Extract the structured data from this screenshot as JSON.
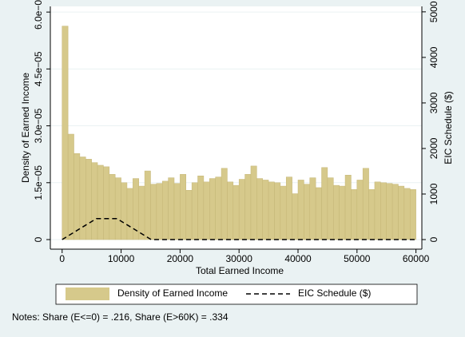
{
  "chart_data": {
    "type": "histogram",
    "x_label": "Total Earned Income",
    "y_label": "Density of Earned Income",
    "y2_label": "EIC Schedule ($)",
    "note": "Notes: Share (E<=0) = .216, Share (E>60K) = .334",
    "legend": "bottom",
    "grid": true,
    "xlim": [
      -2000,
      61000
    ],
    "xticks": [
      0,
      10000,
      20000,
      30000,
      40000,
      50000,
      60000
    ],
    "ylim": [
      0,
      6.15e-05
    ],
    "yticks": [
      0,
      {
        "value": 1.5e-05,
        "label": "1.5e−05"
      },
      {
        "value": 3e-05,
        "label": "3.0e−05"
      },
      {
        "value": 4.5e-05,
        "label": "4.5e−05"
      },
      {
        "value": 6e-05,
        "label": "6.0e−05"
      }
    ],
    "y2lim": [
      0,
      5120
    ],
    "y2ticks": [
      0,
      1000,
      2000,
      3000,
      4000,
      5000
    ],
    "series": [
      {
        "name": "Density of Earned Income",
        "type": "histogram",
        "color": "#d6c98b",
        "bins": [
          0,
          1000,
          2000,
          3000,
          4000,
          5000,
          6000,
          7000,
          8000,
          9000,
          10000,
          11000,
          12000,
          13000,
          14000,
          15000,
          16000,
          17000,
          18000,
          19000,
          20000,
          21000,
          22000,
          23000,
          24000,
          25000,
          26000,
          27000,
          28000,
          29000,
          30000,
          31000,
          32000,
          33000,
          34000,
          35000,
          36000,
          37000,
          38000,
          39000,
          40000,
          41000,
          42000,
          43000,
          44000,
          45000,
          46000,
          47000,
          48000,
          49000,
          50000,
          51000,
          52000,
          53000,
          54000,
          55000,
          56000,
          57000,
          58000,
          59000,
          60000
        ],
        "values": [
          5.63e-05,
          2.78e-05,
          2.27e-05,
          2.18e-05,
          2.12e-05,
          2.03e-05,
          1.96e-05,
          1.92e-05,
          1.72e-05,
          1.63e-05,
          1.5e-05,
          1.35e-05,
          1.61e-05,
          1.41e-05,
          1.81e-05,
          1.46e-05,
          1.48e-05,
          1.54e-05,
          1.63e-05,
          1.48e-05,
          1.72e-05,
          1.3e-05,
          1.5e-05,
          1.68e-05,
          1.52e-05,
          1.61e-05,
          1.65e-05,
          1.88e-05,
          1.52e-05,
          1.43e-05,
          1.59e-05,
          1.72e-05,
          1.94e-05,
          1.61e-05,
          1.57e-05,
          1.52e-05,
          1.5e-05,
          1.41e-05,
          1.65e-05,
          1.21e-05,
          1.57e-05,
          1.46e-05,
          1.63e-05,
          1.37e-05,
          1.9e-05,
          1.63e-05,
          1.43e-05,
          1.41e-05,
          1.7e-05,
          1.32e-05,
          1.57e-05,
          1.88e-05,
          1.32e-05,
          1.52e-05,
          1.5e-05,
          1.48e-05,
          1.46e-05,
          1.41e-05,
          1.35e-05,
          1.32e-05
        ]
      },
      {
        "name": "EIC Schedule ($)",
        "type": "line",
        "color": "#000000",
        "dash": true,
        "axis": "y2",
        "x": [
          0,
          5800,
          9300,
          15100,
          60000
        ],
        "values": [
          0,
          460,
          460,
          0,
          0
        ]
      }
    ]
  }
}
